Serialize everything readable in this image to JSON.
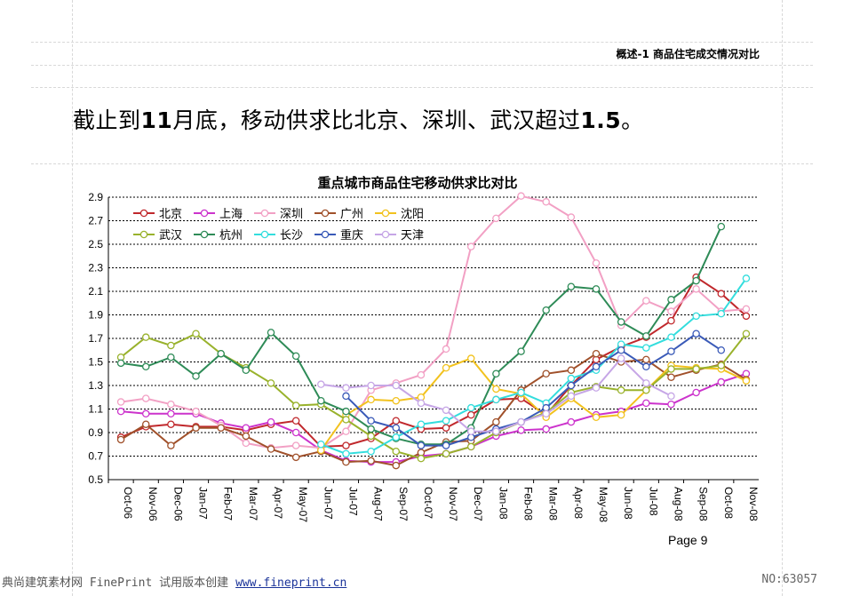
{
  "header": {
    "doc_label": "概述-1 商品住宅成交情况对比"
  },
  "headline": {
    "part1": "截止到",
    "num1": "11",
    "part2": "月底，移动供求比北京、深圳、武汉超过",
    "num2": "1.5",
    "part3": "。"
  },
  "page_label": "Page 9",
  "footer": {
    "left_text": "典尚建筑素材网 FinePrint 试用版本创建",
    "link": "www.fineprint.cn",
    "right_text": "NO:63057"
  },
  "chart_data": {
    "type": "line",
    "title": "重点城市商品住宅移动供求比对比",
    "categories": [
      "Oct-06",
      "Nov-06",
      "Dec-06",
      "Jan-07",
      "Feb-07",
      "Mar-07",
      "Apr-07",
      "May-07",
      "Jun-07",
      "Jul-07",
      "Aug-07",
      "Sep-07",
      "Oct-07",
      "Nov-07",
      "Dec-07",
      "Jan-08",
      "Feb-08",
      "Mar-08",
      "Apr-08",
      "May-08",
      "Jun-08",
      "Jul-08",
      "Aug-08",
      "Sep-08",
      "Oct-08",
      "Nov-08"
    ],
    "ylim": [
      0.5,
      2.9
    ],
    "yticks": [
      "0.5",
      "0.7",
      "0.9",
      "1.1",
      "1.3",
      "1.5",
      "1.7",
      "1.9",
      "2.1",
      "2.3",
      "2.5",
      "2.7",
      "2.9"
    ],
    "grid": true,
    "legend_position": "top-left",
    "series": [
      {
        "name": "北京",
        "color": "#c0282c",
        "values": [
          0.86,
          0.95,
          0.97,
          0.95,
          0.95,
          0.92,
          0.97,
          1.0,
          0.78,
          0.79,
          0.85,
          1.0,
          0.93,
          0.94,
          1.05,
          1.18,
          1.19,
          1.05,
          1.3,
          1.52,
          1.63,
          1.71,
          1.85,
          2.22,
          2.08,
          1.89
        ]
      },
      {
        "name": "上海",
        "color": "#cc33cc",
        "values": [
          1.08,
          1.06,
          1.06,
          1.06,
          0.98,
          0.94,
          0.99,
          0.9,
          0.75,
          0.66,
          0.65,
          0.65,
          0.7,
          0.72,
          0.78,
          0.87,
          0.92,
          0.93,
          0.99,
          1.05,
          1.08,
          1.15,
          1.14,
          1.24,
          1.33,
          1.4
        ]
      },
      {
        "name": "深圳",
        "color": "#f2a0c4",
        "values": [
          1.16,
          1.19,
          1.14,
          1.08,
          0.96,
          0.81,
          0.77,
          0.79,
          0.77,
          0.91,
          1.26,
          1.32,
          1.39,
          1.61,
          2.48,
          2.72,
          2.91,
          2.86,
          2.73,
          2.34,
          1.81,
          2.02,
          1.93,
          2.12,
          1.93,
          1.95
        ]
      },
      {
        "name": "广州",
        "color": "#a0502a",
        "values": [
          0.84,
          0.97,
          0.79,
          0.94,
          0.94,
          0.87,
          0.76,
          0.69,
          0.74,
          0.65,
          0.66,
          0.62,
          0.73,
          0.82,
          0.83,
          0.99,
          1.26,
          1.4,
          1.43,
          1.57,
          1.5,
          1.52,
          1.37,
          1.43,
          1.48,
          1.35
        ]
      },
      {
        "name": "沈阳",
        "color": "#f2c21e",
        "values": [
          null,
          null,
          null,
          null,
          null,
          null,
          null,
          null,
          0.75,
          1.05,
          1.18,
          1.17,
          1.2,
          1.45,
          1.53,
          1.27,
          1.23,
          1.03,
          1.19,
          1.03,
          1.05,
          1.26,
          1.47,
          1.45,
          1.44,
          1.34
        ]
      },
      {
        "name": "武汉",
        "color": "#99b22c",
        "values": [
          1.54,
          1.71,
          1.64,
          1.74,
          1.57,
          1.45,
          1.32,
          1.13,
          1.14,
          1.01,
          0.87,
          0.74,
          0.68,
          0.72,
          0.78,
          0.9,
          0.99,
          1.07,
          1.24,
          1.29,
          1.26,
          1.26,
          1.44,
          1.44,
          1.47,
          1.74
        ]
      },
      {
        "name": "杭州",
        "color": "#2e8b57",
        "values": [
          1.49,
          1.46,
          1.54,
          1.38,
          1.57,
          1.43,
          1.75,
          1.55,
          1.17,
          1.08,
          0.93,
          0.85,
          0.8,
          0.8,
          0.94,
          1.4,
          1.59,
          1.94,
          2.14,
          2.12,
          1.84,
          1.72,
          2.03,
          2.19,
          2.65,
          null
        ]
      },
      {
        "name": "长沙",
        "color": "#33dddd",
        "values": [
          null,
          null,
          null,
          null,
          null,
          null,
          null,
          null,
          0.8,
          0.72,
          0.74,
          0.86,
          0.97,
          1.0,
          1.11,
          1.18,
          1.24,
          1.15,
          1.36,
          1.43,
          1.65,
          1.62,
          1.71,
          1.89,
          1.91,
          2.21
        ]
      },
      {
        "name": "重庆",
        "color": "#3a5ab8",
        "values": [
          null,
          null,
          null,
          null,
          null,
          null,
          null,
          null,
          null,
          1.21,
          1.0,
          0.94,
          0.79,
          0.79,
          0.86,
          0.93,
          0.99,
          1.11,
          1.3,
          1.46,
          1.6,
          1.46,
          1.59,
          1.74,
          1.6,
          null
        ]
      },
      {
        "name": "天津",
        "color": "#c6a6e6",
        "values": [
          null,
          null,
          null,
          null,
          null,
          null,
          null,
          null,
          1.31,
          1.28,
          1.3,
          1.3,
          1.15,
          1.09,
          0.91,
          0.91,
          0.99,
          1.06,
          1.21,
          1.28,
          1.53,
          1.32,
          1.21,
          null,
          null,
          null
        ]
      }
    ]
  }
}
